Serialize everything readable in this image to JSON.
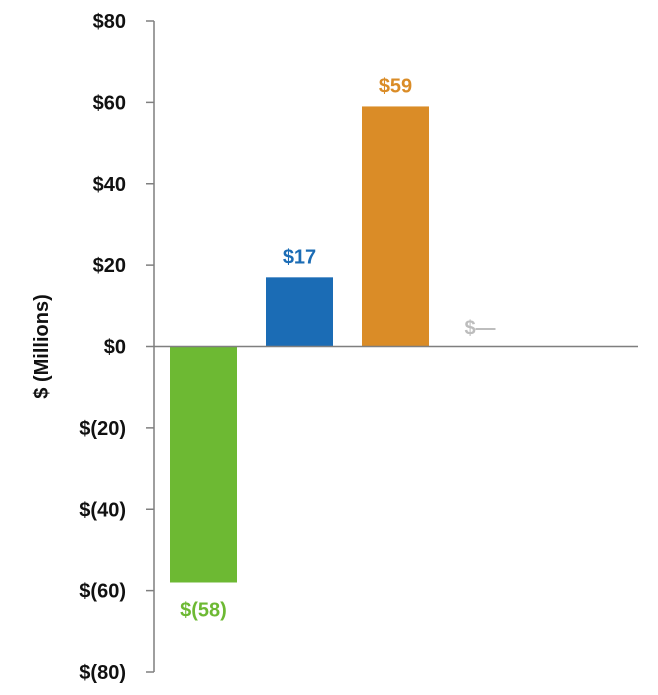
{
  "chart_data": {
    "type": "bar",
    "title": "",
    "xlabel": "",
    "ylabel": "$ (Millions)",
    "ylim": [
      -80,
      80
    ],
    "yticks": [
      80,
      60,
      40,
      20,
      0,
      -20,
      -40,
      -60,
      -80
    ],
    "ytick_labels": [
      "$80",
      "$60",
      "$40",
      "$20",
      "$0",
      "$(20)",
      "$(40)",
      "$(60)",
      "$(80)"
    ],
    "categories": [
      "",
      "",
      "",
      ""
    ],
    "values": [
      -58,
      17,
      59,
      0
    ],
    "data_labels": [
      "$(58)",
      "$17",
      "$59",
      "$—"
    ],
    "colors": [
      "#6DB933",
      "#1B6CB5",
      "#DA8C27",
      "#BDBDBD"
    ],
    "grid": false,
    "legend": "none"
  }
}
